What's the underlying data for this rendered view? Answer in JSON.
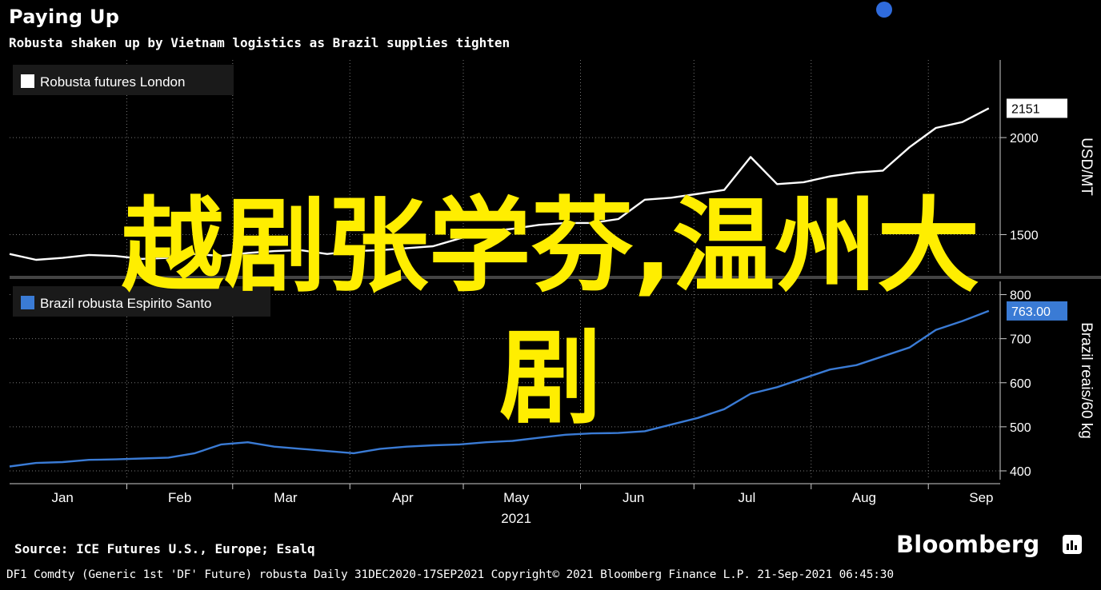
{
  "header": {
    "title": "Paying Up",
    "subtitle": "Robusta shaken up by Vietnam logistics as Brazil supplies tighten"
  },
  "chart_data": [
    {
      "type": "line",
      "panel": "top",
      "legend": "Robusta futures London",
      "legend_position": "top-left",
      "ylabel": "USD/MT",
      "yticks": [
        1500,
        2000
      ],
      "ylim": [
        1300,
        2400
      ],
      "last_value_label": "2151",
      "color": "#ffffff",
      "grid": true,
      "series": [
        {
          "name": "Robusta futures London",
          "x": [
            "2021-01-01",
            "2021-01-08",
            "2021-01-15",
            "2021-01-22",
            "2021-01-29",
            "2021-02-05",
            "2021-02-12",
            "2021-02-19",
            "2021-02-26",
            "2021-03-05",
            "2021-03-12",
            "2021-03-19",
            "2021-03-26",
            "2021-04-02",
            "2021-04-09",
            "2021-04-16",
            "2021-04-23",
            "2021-04-30",
            "2021-05-07",
            "2021-05-14",
            "2021-05-21",
            "2021-05-28",
            "2021-06-04",
            "2021-06-11",
            "2021-06-18",
            "2021-06-25",
            "2021-07-02",
            "2021-07-09",
            "2021-07-16",
            "2021-07-23",
            "2021-07-30",
            "2021-08-06",
            "2021-08-13",
            "2021-08-20",
            "2021-08-27",
            "2021-09-03",
            "2021-09-10",
            "2021-09-17"
          ],
          "values": [
            1400,
            1370,
            1380,
            1395,
            1390,
            1375,
            1380,
            1400,
            1390,
            1405,
            1415,
            1420,
            1400,
            1415,
            1420,
            1430,
            1440,
            1480,
            1515,
            1530,
            1550,
            1560,
            1560,
            1580,
            1680,
            1690,
            1710,
            1730,
            1900,
            1760,
            1770,
            1800,
            1820,
            1830,
            1950,
            2050,
            2080,
            2151
          ]
        }
      ]
    },
    {
      "type": "line",
      "panel": "bottom",
      "legend": "Brazil robusta Espirito Santo",
      "legend_position": "top-left",
      "ylabel": "Brazil reais/60 kg",
      "yticks": [
        400,
        500,
        600,
        700,
        800
      ],
      "ylim": [
        380,
        830
      ],
      "last_value_label": "763.00",
      "color": "#3a7bd5",
      "grid": true,
      "series": [
        {
          "name": "Brazil robusta Espirito Santo",
          "x": [
            "2021-01-01",
            "2021-01-08",
            "2021-01-15",
            "2021-01-22",
            "2021-01-29",
            "2021-02-05",
            "2021-02-12",
            "2021-02-19",
            "2021-02-26",
            "2021-03-05",
            "2021-03-12",
            "2021-03-19",
            "2021-03-26",
            "2021-04-02",
            "2021-04-09",
            "2021-04-16",
            "2021-04-23",
            "2021-04-30",
            "2021-05-07",
            "2021-05-14",
            "2021-05-21",
            "2021-05-28",
            "2021-06-04",
            "2021-06-11",
            "2021-06-18",
            "2021-06-25",
            "2021-07-02",
            "2021-07-09",
            "2021-07-16",
            "2021-07-23",
            "2021-07-30",
            "2021-08-06",
            "2021-08-13",
            "2021-08-20",
            "2021-08-27",
            "2021-09-03",
            "2021-09-10",
            "2021-09-17"
          ],
          "values": [
            410,
            418,
            420,
            425,
            426,
            428,
            430,
            440,
            460,
            465,
            455,
            450,
            445,
            440,
            450,
            455,
            458,
            460,
            465,
            468,
            475,
            482,
            485,
            486,
            490,
            505,
            520,
            540,
            575,
            590,
            610,
            630,
            640,
            660,
            680,
            720,
            740,
            763
          ]
        }
      ]
    }
  ],
  "x_axis": {
    "months": [
      "Jan",
      "Feb",
      "Mar",
      "Apr",
      "May",
      "Jun",
      "Jul",
      "Aug",
      "Sep"
    ],
    "year_label": "2021"
  },
  "overlay": {
    "line1": "越剧张学芬,温州大",
    "line2": "剧"
  },
  "footer": {
    "source": "Source: ICE Futures U.S., Europe; Esalq",
    "brand": "Bloomberg",
    "metadata": "DF1 Comdty (Generic 1st 'DF' Future) robusta  Daily 31DEC2020-17SEP2021  Copyright© 2021 Bloomberg Finance L.P.  21-Sep-2021 06:45:30"
  },
  "colors": {
    "background": "#000000",
    "top_line": "#ffffff",
    "bottom_line": "#3a7bd5",
    "overlay_text": "#ffee00"
  }
}
